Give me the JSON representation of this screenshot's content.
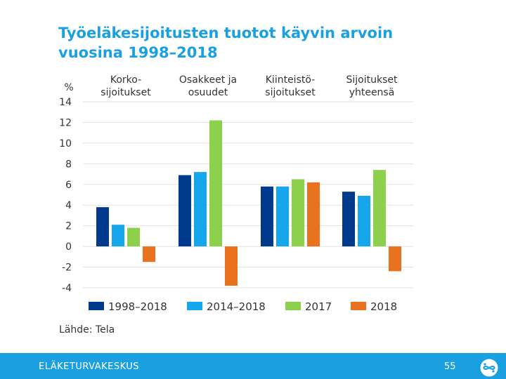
{
  "slide": {
    "title_line1": "Työeläkesijoitusten tuotot käyvin arvoin",
    "title_line2": "vuosina 1998–2018",
    "source": "Lähde: Tela",
    "footer_org": "ELÄKETURVAKESKUS",
    "page_number": "55"
  },
  "colors": {
    "accent": "#1aa0e0",
    "s1998": "#003a8c",
    "s2014": "#16a6ec",
    "s2017": "#8cd04c",
    "s2018": "#e8721e"
  },
  "chart_data": {
    "type": "bar",
    "title": "Työeläkesijoitusten tuotot käyvin arvoin vuosina 1998–2018",
    "ylabel": "%",
    "ylim": [
      -4,
      14
    ],
    "yticks": [
      14,
      12,
      10,
      8,
      6,
      4,
      2,
      0,
      -2,
      -4
    ],
    "categories": [
      [
        "Korko-",
        "sijoitukset"
      ],
      [
        "Osakkeet ja",
        "osuudet"
      ],
      [
        "Kiinteistö-",
        "sijoitukset"
      ],
      [
        "Sijoitukset",
        "yhteensä"
      ]
    ],
    "series": [
      {
        "name": "1998–2018",
        "color": "#003a8c",
        "values": [
          3.8,
          6.9,
          5.8,
          5.3
        ]
      },
      {
        "name": "2014–2018",
        "color": "#16a6ec",
        "values": [
          2.1,
          7.2,
          5.8,
          4.9
        ]
      },
      {
        "name": "2017",
        "color": "#8cd04c",
        "values": [
          1.8,
          12.2,
          6.5,
          7.4
        ]
      },
      {
        "name": "2018",
        "color": "#e8721e",
        "values": [
          -1.5,
          -3.8,
          6.2,
          -2.4
        ]
      }
    ],
    "legend_position": "bottom"
  }
}
